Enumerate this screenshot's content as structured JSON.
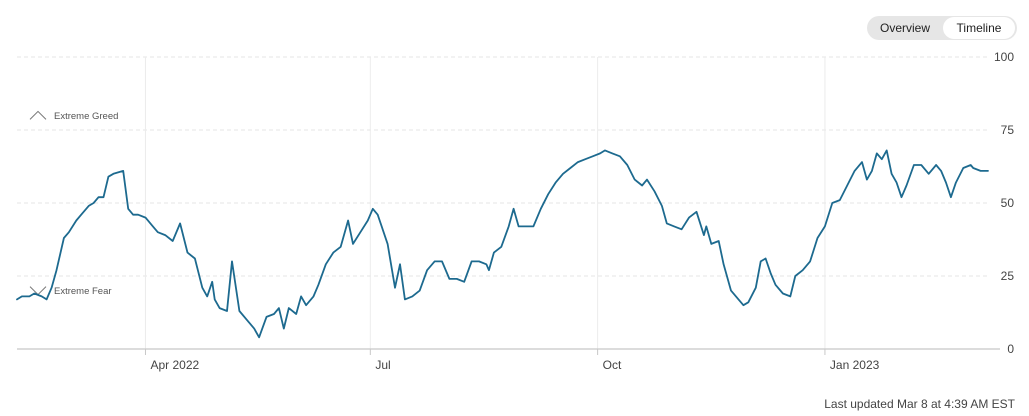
{
  "toggle": {
    "options": [
      "Overview",
      "Timeline"
    ],
    "selected": "Timeline"
  },
  "footer": {
    "last_updated": "Last updated Mar 8 at 4:39 AM EST"
  },
  "colors": {
    "line": "#1d6a8f",
    "grid": "#e4e4e4",
    "axis": "#c8c8c8",
    "icon": "#777777"
  },
  "chart_data": {
    "type": "line",
    "title": "",
    "xlabel": "",
    "ylabel": "",
    "ylim": [
      0,
      100
    ],
    "y_ticks": [
      0,
      25,
      50,
      75,
      100
    ],
    "x_range": [
      "2022-02-08",
      "2023-03-08"
    ],
    "x_ticks": [
      {
        "label": "Apr 2022",
        "date": "2022-04-01"
      },
      {
        "label": "Jul",
        "date": "2022-07-01"
      },
      {
        "label": "Oct",
        "date": "2022-10-01"
      },
      {
        "label": "Jan 2023",
        "date": "2023-01-01"
      }
    ],
    "annotations": [
      {
        "label": "Extreme Greed",
        "icon": "arrow-up-icon",
        "y": 80
      },
      {
        "label": "Extreme Fear",
        "icon": "arrow-down-icon",
        "y": 20
      }
    ],
    "grid": {
      "horizontal": true,
      "vertical": true
    },
    "series": [
      {
        "name": "",
        "points": [
          [
            "2022-02-08",
            17
          ],
          [
            "2022-02-10",
            18
          ],
          [
            "2022-02-13",
            18
          ],
          [
            "2022-02-15",
            19
          ],
          [
            "2022-02-18",
            18
          ],
          [
            "2022-02-20",
            17
          ],
          [
            "2022-02-22",
            21
          ],
          [
            "2022-02-24",
            27
          ],
          [
            "2022-02-27",
            38
          ],
          [
            "2022-03-01",
            40
          ],
          [
            "2022-03-04",
            44
          ],
          [
            "2022-03-06",
            46
          ],
          [
            "2022-03-09",
            49
          ],
          [
            "2022-03-11",
            50
          ],
          [
            "2022-03-13",
            52
          ],
          [
            "2022-03-15",
            52
          ],
          [
            "2022-03-17",
            59
          ],
          [
            "2022-03-19",
            60
          ],
          [
            "2022-03-23",
            61
          ],
          [
            "2022-03-25",
            48
          ],
          [
            "2022-03-27",
            46
          ],
          [
            "2022-03-29",
            46
          ],
          [
            "2022-04-01",
            45
          ],
          [
            "2022-04-04",
            42
          ],
          [
            "2022-04-06",
            40
          ],
          [
            "2022-04-09",
            39
          ],
          [
            "2022-04-12",
            37
          ],
          [
            "2022-04-15",
            43
          ],
          [
            "2022-04-18",
            33
          ],
          [
            "2022-04-21",
            31
          ],
          [
            "2022-04-24",
            21
          ],
          [
            "2022-04-26",
            18
          ],
          [
            "2022-04-28",
            23
          ],
          [
            "2022-04-29",
            17
          ],
          [
            "2022-05-01",
            14
          ],
          [
            "2022-05-04",
            13
          ],
          [
            "2022-05-06",
            30
          ],
          [
            "2022-05-09",
            13
          ],
          [
            "2022-05-12",
            10
          ],
          [
            "2022-05-15",
            7
          ],
          [
            "2022-05-17",
            4
          ],
          [
            "2022-05-20",
            11
          ],
          [
            "2022-05-23",
            12
          ],
          [
            "2022-05-25",
            14
          ],
          [
            "2022-05-27",
            7
          ],
          [
            "2022-05-29",
            14
          ],
          [
            "2022-06-01",
            12
          ],
          [
            "2022-06-03",
            18
          ],
          [
            "2022-06-05",
            15
          ],
          [
            "2022-06-08",
            18
          ],
          [
            "2022-06-10",
            22
          ],
          [
            "2022-06-13",
            29
          ],
          [
            "2022-06-16",
            33
          ],
          [
            "2022-06-19",
            35
          ],
          [
            "2022-06-22",
            44
          ],
          [
            "2022-06-24",
            36
          ],
          [
            "2022-06-27",
            40
          ],
          [
            "2022-06-30",
            44
          ],
          [
            "2022-07-02",
            48
          ],
          [
            "2022-07-04",
            46
          ],
          [
            "2022-07-08",
            36
          ],
          [
            "2022-07-11",
            21
          ],
          [
            "2022-07-13",
            29
          ],
          [
            "2022-07-15",
            17
          ],
          [
            "2022-07-18",
            18
          ],
          [
            "2022-07-21",
            20
          ],
          [
            "2022-07-24",
            27
          ],
          [
            "2022-07-27",
            30
          ],
          [
            "2022-07-30",
            30
          ],
          [
            "2022-08-02",
            24
          ],
          [
            "2022-08-05",
            24
          ],
          [
            "2022-08-08",
            23
          ],
          [
            "2022-08-11",
            30
          ],
          [
            "2022-08-14",
            30
          ],
          [
            "2022-08-17",
            29
          ],
          [
            "2022-08-18",
            27
          ],
          [
            "2022-08-20",
            33
          ],
          [
            "2022-08-23",
            35
          ],
          [
            "2022-08-26",
            42
          ],
          [
            "2022-08-28",
            48
          ],
          [
            "2022-08-30",
            42
          ],
          [
            "2022-09-02",
            42
          ],
          [
            "2022-09-05",
            42
          ],
          [
            "2022-09-08",
            48
          ],
          [
            "2022-09-11",
            53
          ],
          [
            "2022-09-14",
            57
          ],
          [
            "2022-09-17",
            60
          ],
          [
            "2022-09-20",
            62
          ],
          [
            "2022-09-23",
            64
          ],
          [
            "2022-09-26",
            65
          ],
          [
            "2022-09-29",
            66
          ],
          [
            "2022-10-02",
            67
          ],
          [
            "2022-10-04",
            68
          ],
          [
            "2022-10-07",
            67
          ],
          [
            "2022-10-10",
            66
          ],
          [
            "2022-10-13",
            63
          ],
          [
            "2022-10-16",
            58
          ],
          [
            "2022-10-19",
            56
          ],
          [
            "2022-10-21",
            58
          ],
          [
            "2022-10-24",
            54
          ],
          [
            "2022-10-27",
            49
          ],
          [
            "2022-10-29",
            43
          ],
          [
            "2022-11-01",
            42
          ],
          [
            "2022-11-04",
            41
          ],
          [
            "2022-11-07",
            45
          ],
          [
            "2022-11-10",
            47
          ],
          [
            "2022-11-13",
            39
          ],
          [
            "2022-11-14",
            42
          ],
          [
            "2022-11-16",
            36
          ],
          [
            "2022-11-19",
            37
          ],
          [
            "2022-11-21",
            29
          ],
          [
            "2022-11-24",
            20
          ],
          [
            "2022-11-27",
            17
          ],
          [
            "2022-11-29",
            15
          ],
          [
            "2022-12-01",
            16
          ],
          [
            "2022-12-04",
            21
          ],
          [
            "2022-12-06",
            30
          ],
          [
            "2022-12-08",
            31
          ],
          [
            "2022-12-10",
            26
          ],
          [
            "2022-12-12",
            22
          ],
          [
            "2022-12-15",
            19
          ],
          [
            "2022-12-18",
            18
          ],
          [
            "2022-12-20",
            25
          ],
          [
            "2022-12-23",
            27
          ],
          [
            "2022-12-26",
            30
          ],
          [
            "2022-12-29",
            38
          ],
          [
            "2023-01-01",
            42
          ],
          [
            "2023-01-04",
            50
          ],
          [
            "2023-01-07",
            51
          ],
          [
            "2023-01-10",
            56
          ],
          [
            "2023-01-13",
            61
          ],
          [
            "2023-01-16",
            64
          ],
          [
            "2023-01-18",
            58
          ],
          [
            "2023-01-20",
            61
          ],
          [
            "2023-01-22",
            67
          ],
          [
            "2023-01-24",
            65
          ],
          [
            "2023-01-26",
            68
          ],
          [
            "2023-01-28",
            60
          ],
          [
            "2023-01-30",
            57
          ],
          [
            "2023-02-01",
            52
          ],
          [
            "2023-02-03",
            56
          ],
          [
            "2023-02-06",
            63
          ],
          [
            "2023-02-09",
            63
          ],
          [
            "2023-02-12",
            60
          ],
          [
            "2023-02-15",
            63
          ],
          [
            "2023-02-17",
            61
          ],
          [
            "2023-02-19",
            57
          ],
          [
            "2023-02-21",
            52
          ],
          [
            "2023-02-23",
            57
          ],
          [
            "2023-02-26",
            62
          ],
          [
            "2023-03-01",
            63
          ],
          [
            "2023-03-02",
            62
          ],
          [
            "2023-03-05",
            61
          ],
          [
            "2023-03-08",
            61
          ]
        ]
      }
    ]
  }
}
